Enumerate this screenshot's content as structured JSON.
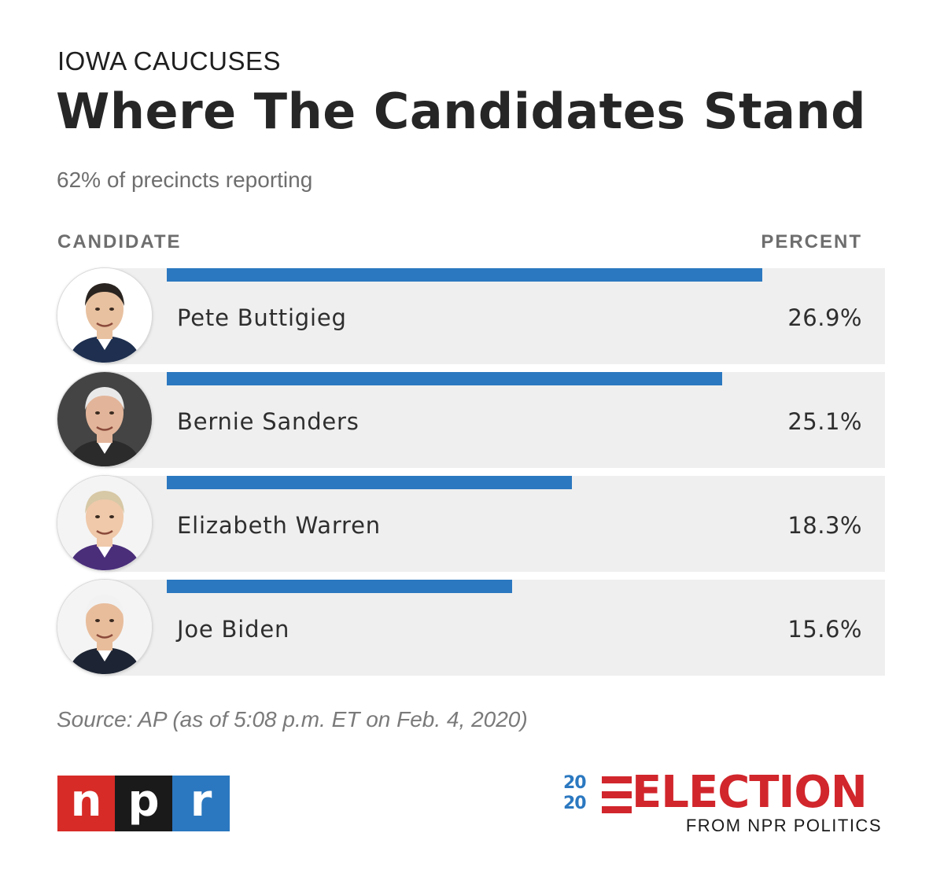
{
  "header": {
    "kicker": "IOWA CAUCUSES",
    "title": "Where The Candidates Stand",
    "subtitle": "62% of precincts reporting"
  },
  "columns": {
    "candidate": "CANDIDATE",
    "percent": "PERCENT"
  },
  "chart_data": {
    "type": "bar",
    "orientation": "horizontal",
    "title": "Where The Candidates Stand",
    "categories": [
      "Pete Buttigieg",
      "Bernie Sanders",
      "Elizabeth Warren",
      "Joe Biden"
    ],
    "values": [
      26.9,
      25.1,
      18.3,
      15.6
    ],
    "value_labels": [
      "26.9%",
      "25.1%",
      "18.3%",
      "15.6%"
    ],
    "unit": "%",
    "xlim": [
      0,
      30
    ],
    "bar_color": "#2b78c0",
    "row_color": "#efefef",
    "grid": false,
    "legend": "none"
  },
  "rows": [
    {
      "name": "Pete Buttigieg",
      "percent": "26.9%",
      "photo": "pete-buttigieg-portrait"
    },
    {
      "name": "Bernie Sanders",
      "percent": "25.1%",
      "photo": "bernie-sanders-portrait"
    },
    {
      "name": "Elizabeth Warren",
      "percent": "18.3%",
      "photo": "elizabeth-warren-portrait"
    },
    {
      "name": "Joe Biden",
      "percent": "15.6%",
      "photo": "joe-biden-portrait"
    }
  ],
  "source": "Source: AP (as of 5:08 p.m. ET on Feb. 4, 2020)",
  "logos": {
    "npr_letters": [
      "n",
      "p",
      "r"
    ],
    "npr_colors": [
      "#d72b27",
      "#1a1a1a",
      "#2b78c0"
    ],
    "election_year": "2020",
    "election_word": "ELECTION",
    "election_tagline": "FROM NPR POLITICS",
    "election_red": "#d1262c",
    "election_blue": "#2b78c0"
  }
}
